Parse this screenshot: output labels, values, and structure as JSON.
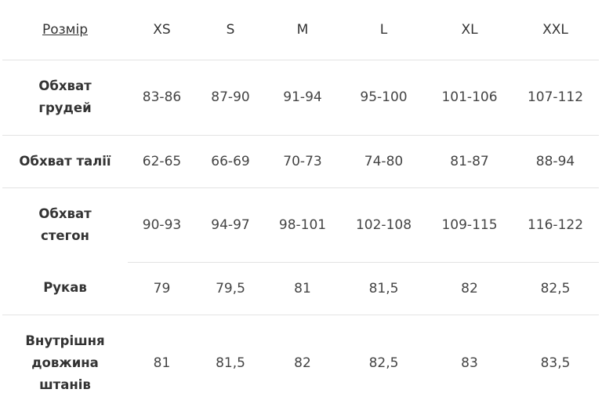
{
  "header": {
    "label": "Розмір",
    "sizes": [
      "XS",
      "S",
      "M",
      "L",
      "XL",
      "XXL"
    ]
  },
  "rows": [
    {
      "label": "Обхват грудей",
      "values": [
        "83-86",
        "87-90",
        "91-94",
        "95-100",
        "101-106",
        "107-112"
      ]
    },
    {
      "label": "Обхват талії",
      "values": [
        "62-65",
        "66-69",
        "70-73",
        "74-80",
        "81-87",
        "88-94"
      ]
    },
    {
      "label": "Обхват стегон",
      "values": [
        "90-93",
        "94-97",
        "98-101",
        "102-108",
        "109-115",
        "116-122"
      ]
    },
    {
      "label": "Рукав",
      "values": [
        "79",
        "79,5",
        "81",
        "81,5",
        "82",
        "82,5"
      ]
    },
    {
      "label": "Внутрішня довжина штанів",
      "values": [
        "81",
        "81,5",
        "82",
        "82,5",
        "83",
        "83,5"
      ]
    }
  ]
}
